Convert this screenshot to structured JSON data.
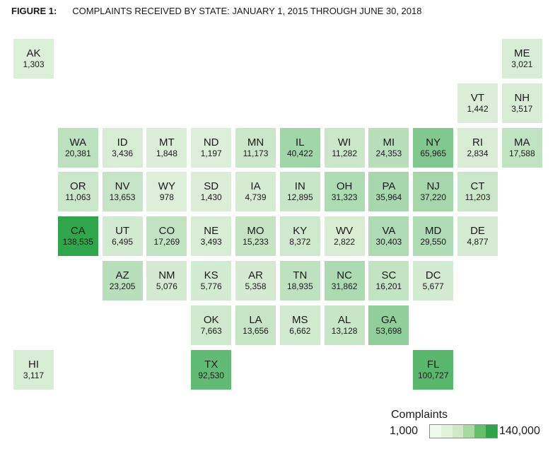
{
  "figure": {
    "label": "FIGURE 1:",
    "title": "COMPLAINTS RECEIVED BY STATE: JANUARY 1, 2015 THROUGH JUNE 30, 2018"
  },
  "chart_data": {
    "type": "heatmap",
    "title": "COMPLAINTS RECEIVED BY STATE: JANUARY 1, 2015 THROUGH JUNE 30, 2018",
    "legend": {
      "title": "Complaints",
      "min_label": "1,000",
      "max_label": "140,000",
      "min": 1000,
      "max": 140000,
      "position": "bottom-right"
    },
    "colors": {
      "low": "#ddefd9",
      "high": "#2da54a"
    },
    "legend_swatches": [
      "#f1f8ef",
      "#e1f1dc",
      "#cfe9c8",
      "#a8d99e",
      "#62c06b",
      "#2da54a"
    ],
    "states": [
      {
        "abbr": "AK",
        "value": 1303,
        "label": "1,303",
        "row": 0,
        "col": 0
      },
      {
        "abbr": "ME",
        "value": 3021,
        "label": "3,021",
        "row": 0,
        "col": 11
      },
      {
        "abbr": "VT",
        "value": 1442,
        "label": "1,442",
        "row": 1,
        "col": 10
      },
      {
        "abbr": "NH",
        "value": 3517,
        "label": "3,517",
        "row": 1,
        "col": 11
      },
      {
        "abbr": "WA",
        "value": 20381,
        "label": "20,381",
        "row": 2,
        "col": 1
      },
      {
        "abbr": "ID",
        "value": 3436,
        "label": "3,436",
        "row": 2,
        "col": 2
      },
      {
        "abbr": "MT",
        "value": 1848,
        "label": "1,848",
        "row": 2,
        "col": 3
      },
      {
        "abbr": "ND",
        "value": 1197,
        "label": "1,197",
        "row": 2,
        "col": 4
      },
      {
        "abbr": "MN",
        "value": 11173,
        "label": "11,173",
        "row": 2,
        "col": 5
      },
      {
        "abbr": "IL",
        "value": 40422,
        "label": "40,422",
        "row": 2,
        "col": 6
      },
      {
        "abbr": "WI",
        "value": 11282,
        "label": "11,282",
        "row": 2,
        "col": 7
      },
      {
        "abbr": "MI",
        "value": 24353,
        "label": "24,353",
        "row": 2,
        "col": 8
      },
      {
        "abbr": "NY",
        "value": 65965,
        "label": "65,965",
        "row": 2,
        "col": 9
      },
      {
        "abbr": "RI",
        "value": 2834,
        "label": "2,834",
        "row": 2,
        "col": 10
      },
      {
        "abbr": "MA",
        "value": 17588,
        "label": "17,588",
        "row": 2,
        "col": 11
      },
      {
        "abbr": "OR",
        "value": 11063,
        "label": "11,063",
        "row": 3,
        "col": 1
      },
      {
        "abbr": "NV",
        "value": 13653,
        "label": "13,653",
        "row": 3,
        "col": 2
      },
      {
        "abbr": "WY",
        "value": 978,
        "label": "978",
        "row": 3,
        "col": 3
      },
      {
        "abbr": "SD",
        "value": 1430,
        "label": "1,430",
        "row": 3,
        "col": 4
      },
      {
        "abbr": "IA",
        "value": 4739,
        "label": "4,739",
        "row": 3,
        "col": 5
      },
      {
        "abbr": "IN",
        "value": 12895,
        "label": "12,895",
        "row": 3,
        "col": 6
      },
      {
        "abbr": "OH",
        "value": 31323,
        "label": "31,323",
        "row": 3,
        "col": 7
      },
      {
        "abbr": "PA",
        "value": 35964,
        "label": "35,964",
        "row": 3,
        "col": 8
      },
      {
        "abbr": "NJ",
        "value": 37220,
        "label": "37,220",
        "row": 3,
        "col": 9
      },
      {
        "abbr": "CT",
        "value": 11203,
        "label": "11,203",
        "row": 3,
        "col": 10
      },
      {
        "abbr": "CA",
        "value": 138535,
        "label": "138,535",
        "row": 4,
        "col": 1
      },
      {
        "abbr": "UT",
        "value": 6495,
        "label": "6,495",
        "row": 4,
        "col": 2
      },
      {
        "abbr": "CO",
        "value": 17269,
        "label": "17,269",
        "row": 4,
        "col": 3
      },
      {
        "abbr": "NE",
        "value": 3493,
        "label": "3,493",
        "row": 4,
        "col": 4
      },
      {
        "abbr": "MO",
        "value": 15233,
        "label": "15,233",
        "row": 4,
        "col": 5
      },
      {
        "abbr": "KY",
        "value": 8372,
        "label": "8,372",
        "row": 4,
        "col": 6
      },
      {
        "abbr": "WV",
        "value": 2822,
        "label": "2,822",
        "row": 4,
        "col": 7
      },
      {
        "abbr": "VA",
        "value": 30403,
        "label": "30,403",
        "row": 4,
        "col": 8
      },
      {
        "abbr": "MD",
        "value": 29550,
        "label": "29,550",
        "row": 4,
        "col": 9
      },
      {
        "abbr": "DE",
        "value": 4877,
        "label": "4,877",
        "row": 4,
        "col": 10
      },
      {
        "abbr": "AZ",
        "value": 23205,
        "label": "23,205",
        "row": 5,
        "col": 2
      },
      {
        "abbr": "NM",
        "value": 5076,
        "label": "5,076",
        "row": 5,
        "col": 3
      },
      {
        "abbr": "KS",
        "value": 5776,
        "label": "5,776",
        "row": 5,
        "col": 4
      },
      {
        "abbr": "AR",
        "value": 5358,
        "label": "5,358",
        "row": 5,
        "col": 5
      },
      {
        "abbr": "TN",
        "value": 18935,
        "label": "18,935",
        "row": 5,
        "col": 6
      },
      {
        "abbr": "NC",
        "value": 31862,
        "label": "31,862",
        "row": 5,
        "col": 7
      },
      {
        "abbr": "SC",
        "value": 16201,
        "label": "16,201",
        "row": 5,
        "col": 8
      },
      {
        "abbr": "DC",
        "value": 5677,
        "label": "5,677",
        "row": 5,
        "col": 9
      },
      {
        "abbr": "OK",
        "value": 7663,
        "label": "7,663",
        "row": 6,
        "col": 4
      },
      {
        "abbr": "LA",
        "value": 13656,
        "label": "13,656",
        "row": 6,
        "col": 5
      },
      {
        "abbr": "MS",
        "value": 6662,
        "label": "6,662",
        "row": 6,
        "col": 6
      },
      {
        "abbr": "AL",
        "value": 13128,
        "label": "13,128",
        "row": 6,
        "col": 7
      },
      {
        "abbr": "GA",
        "value": 53698,
        "label": "53,698",
        "row": 6,
        "col": 8
      },
      {
        "abbr": "HI",
        "value": 3117,
        "label": "3,117",
        "row": 7,
        "col": 0
      },
      {
        "abbr": "TX",
        "value": 92530,
        "label": "92,530",
        "row": 7,
        "col": 4
      },
      {
        "abbr": "FL",
        "value": 100727,
        "label": "100,727",
        "row": 7,
        "col": 9
      }
    ]
  }
}
